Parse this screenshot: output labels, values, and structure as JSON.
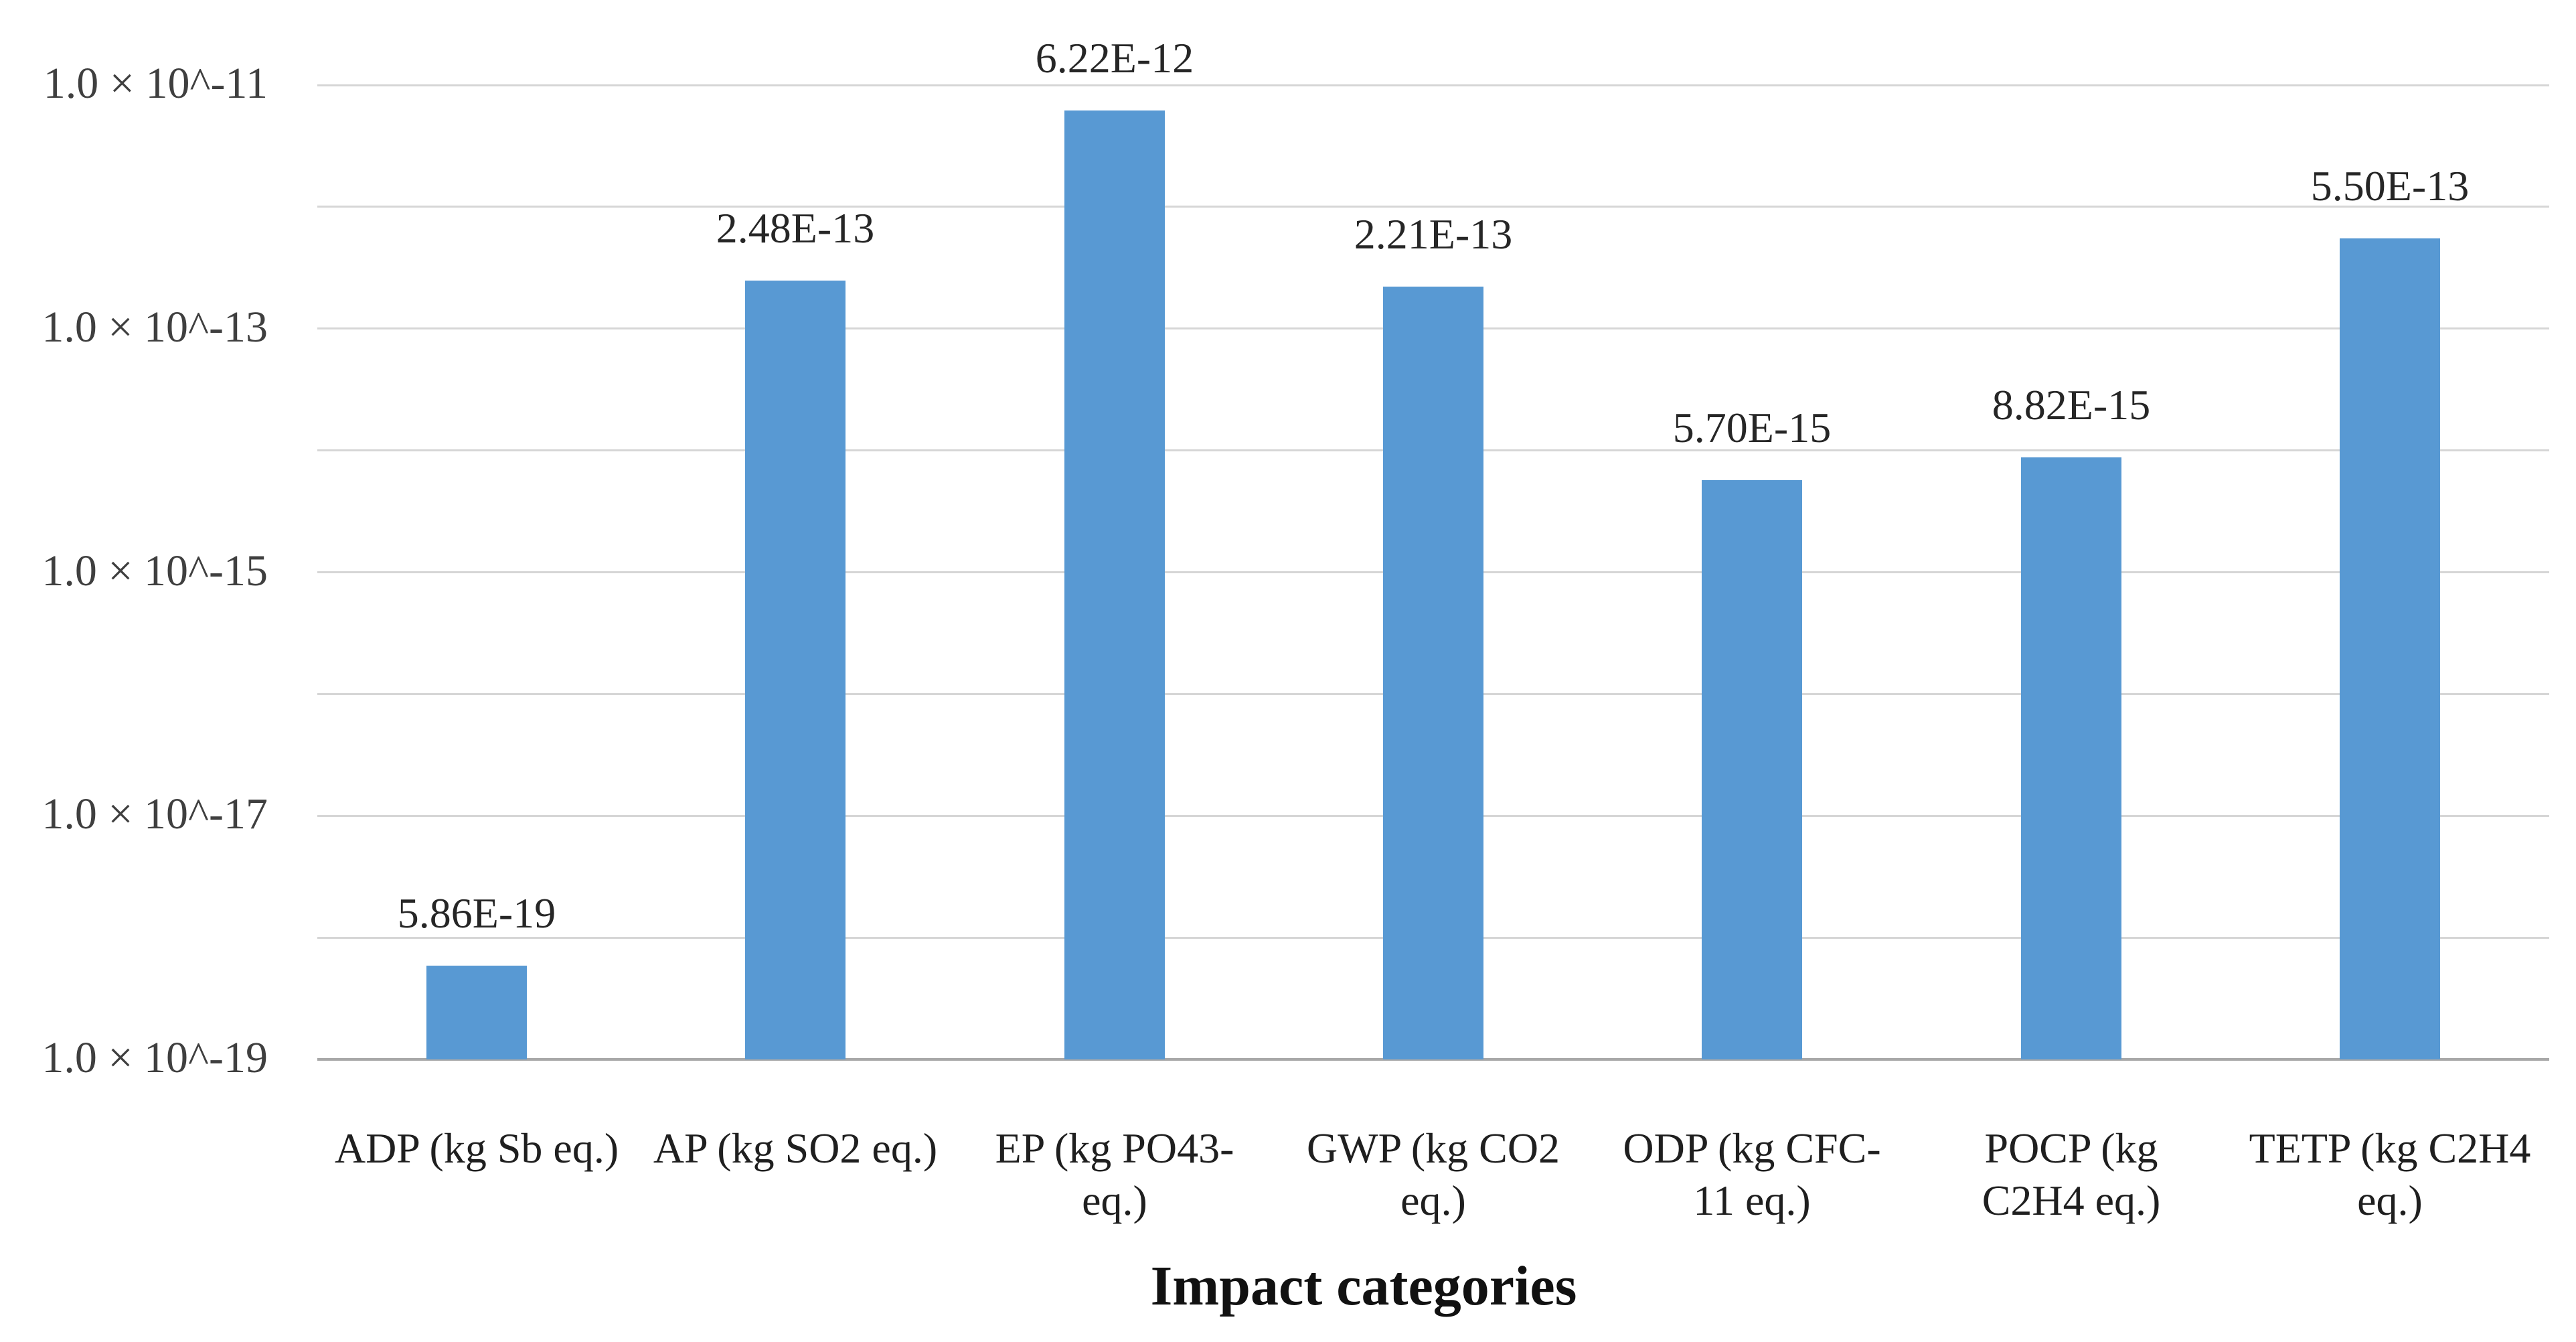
{
  "chart_data": {
    "type": "bar",
    "title": "",
    "xlabel": "Impact categories",
    "ylabel": "",
    "y_scale": "log10",
    "ylim": [
      1e-19,
      1e-11
    ],
    "ylim_exponents": [
      -19,
      -11
    ],
    "grid": "horizontal, one line per decade",
    "legend": "none",
    "y_ticks": [
      {
        "label": "1.0 × 10^-11",
        "exponent": -11
      },
      {
        "label": "1.0 × 10^-13",
        "exponent": -13
      },
      {
        "label": "1.0 × 10^-15",
        "exponent": -15
      },
      {
        "label": "1.0 × 10^-17",
        "exponent": -17
      },
      {
        "label": "1.0 × 10^-19",
        "exponent": -19
      }
    ],
    "gridline_exponents": [
      -11,
      -12,
      -13,
      -14,
      -15,
      -16,
      -17,
      -18,
      -19
    ],
    "categories": [
      "ADP (kg Sb eq.)",
      "AP (kg SO2 eq.)",
      "EP (kg PO43- eq.)",
      "GWP (kg CO2 eq.)",
      "ODP (kg CFC-11 eq.)",
      "POCP (kg C2H4 eq.)",
      "TETP (kg C2H4 eq.)"
    ],
    "category_lines": [
      [
        "ADP (kg Sb eq.)"
      ],
      [
        "AP (kg SO2 eq.)"
      ],
      [
        "EP (kg PO43-",
        "eq.)"
      ],
      [
        "GWP (kg CO2",
        "eq.)"
      ],
      [
        "ODP (kg CFC-",
        "11 eq.)"
      ],
      [
        "POCP (kg",
        "C2H4 eq.)"
      ],
      [
        "TETP (kg C2H4",
        "eq.)"
      ]
    ],
    "values": [
      5.86e-19,
      2.48e-13,
      6.22e-12,
      2.21e-13,
      5.7e-15,
      8.82e-15,
      5.5e-13
    ],
    "value_labels": [
      "5.86E-19",
      "2.48E-13",
      "6.22E-12",
      "2.21E-13",
      "5.70E-15",
      "8.82E-15",
      "5.50E-13"
    ],
    "bar_color": "#5899D3",
    "gridline_color": "#d6d6d6",
    "axis_line_color": "#a8a8a8",
    "tick_text_color": "#3f3f3f",
    "value_text_color": "#262626",
    "title_text_color": "#111111"
  }
}
